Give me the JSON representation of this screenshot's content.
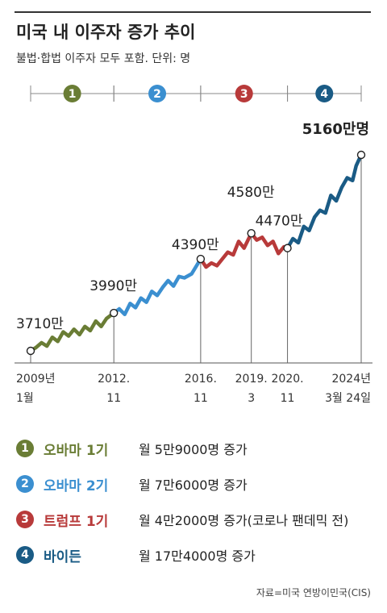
{
  "title": "미국 내 이주자 증가 추이",
  "subtitle": "불법·합법 이주자 모두 포함. 단위: 명",
  "source": "자료=미국 연방이민국(CIS)",
  "colors": {
    "obama1": "#6a7d35",
    "obama2": "#3b8fd0",
    "trump1": "#b83a3a",
    "biden": "#1a5b85"
  },
  "chart_data": {
    "type": "line",
    "x_ticks": [
      {
        "date": "2009-01",
        "label1": "2009년",
        "label2": "1월"
      },
      {
        "date": "2012-11",
        "label1": "2012.",
        "label2": "11"
      },
      {
        "date": "2016-11",
        "label1": "2016.",
        "label2": "11"
      },
      {
        "date": "2019-03",
        "label1": "2019.",
        "label2": "3"
      },
      {
        "date": "2020-11",
        "label1": "2020.",
        "label2": "11"
      },
      {
        "date": "2024-03-24",
        "label1": "2024년",
        "label2": "3월 24일"
      }
    ],
    "ylim": [
      36000000,
      52500000
    ],
    "periods": [
      {
        "num": "1",
        "color_key": "obama1",
        "start": "2009-01",
        "end": "2012-11"
      },
      {
        "num": "2",
        "color_key": "obama2",
        "start": "2012-11",
        "end": "2016-11"
      },
      {
        "num": "3",
        "color_key": "trump1",
        "start": "2016-11",
        "end": "2020-11"
      },
      {
        "num": "4",
        "color_key": "biden",
        "start": "2020-11",
        "end": "2024-03-24"
      }
    ],
    "series": [
      {
        "color_key": "obama1",
        "points": [
          [
            "2009-01",
            37100000
          ],
          [
            "2009-04",
            37350000
          ],
          [
            "2009-07",
            37700000
          ],
          [
            "2009-10",
            37450000
          ],
          [
            "2010-01",
            38100000
          ],
          [
            "2010-04",
            37800000
          ],
          [
            "2010-07",
            38500000
          ],
          [
            "2010-10",
            38200000
          ],
          [
            "2011-01",
            38700000
          ],
          [
            "2011-04",
            38300000
          ],
          [
            "2011-07",
            38900000
          ],
          [
            "2011-10",
            38600000
          ],
          [
            "2012-01",
            39300000
          ],
          [
            "2012-04",
            38900000
          ],
          [
            "2012-07",
            39500000
          ],
          [
            "2012-11",
            39900000
          ]
        ]
      },
      {
        "color_key": "obama2",
        "points": [
          [
            "2012-11",
            39900000
          ],
          [
            "2013-02",
            40200000
          ],
          [
            "2013-05",
            39800000
          ],
          [
            "2013-08",
            40600000
          ],
          [
            "2013-11",
            40300000
          ],
          [
            "2014-02",
            41000000
          ],
          [
            "2014-05",
            40700000
          ],
          [
            "2014-08",
            41500000
          ],
          [
            "2014-11",
            41200000
          ],
          [
            "2015-02",
            41800000
          ],
          [
            "2015-05",
            42300000
          ],
          [
            "2015-08",
            41900000
          ],
          [
            "2015-11",
            42600000
          ],
          [
            "2016-02",
            42500000
          ],
          [
            "2016-06",
            42800000
          ],
          [
            "2016-11",
            43900000
          ]
        ]
      },
      {
        "color_key": "trump1",
        "points": [
          [
            "2016-11",
            43900000
          ],
          [
            "2017-02",
            43300000
          ],
          [
            "2017-05",
            43600000
          ],
          [
            "2017-08",
            43400000
          ],
          [
            "2017-11",
            43900000
          ],
          [
            "2018-02",
            44400000
          ],
          [
            "2018-05",
            44200000
          ],
          [
            "2018-08",
            45200000
          ],
          [
            "2018-11",
            44700000
          ],
          [
            "2019-03",
            45800000
          ],
          [
            "2019-06",
            45300000
          ],
          [
            "2019-09",
            45500000
          ],
          [
            "2019-12",
            44900000
          ],
          [
            "2020-03",
            45200000
          ],
          [
            "2020-06",
            44300000
          ],
          [
            "2020-09",
            44800000
          ],
          [
            "2020-11",
            44700000
          ]
        ]
      },
      {
        "color_key": "biden",
        "points": [
          [
            "2020-11",
            44700000
          ],
          [
            "2021-02",
            45400000
          ],
          [
            "2021-05",
            45100000
          ],
          [
            "2021-08",
            46300000
          ],
          [
            "2021-11",
            46000000
          ],
          [
            "2022-02",
            47000000
          ],
          [
            "2022-05",
            47500000
          ],
          [
            "2022-08",
            47300000
          ],
          [
            "2022-11",
            48600000
          ],
          [
            "2023-02",
            48200000
          ],
          [
            "2023-05",
            49200000
          ],
          [
            "2023-08",
            49900000
          ],
          [
            "2023-11",
            49700000
          ],
          [
            "2024-01",
            50800000
          ],
          [
            "2024-03-24",
            51600000
          ]
        ]
      }
    ],
    "annotations": [
      {
        "date": "2009-01",
        "value": 37100000,
        "label": "3710만",
        "bold": false
      },
      {
        "date": "2012-11",
        "value": 39900000,
        "label": "3990만",
        "bold": false
      },
      {
        "date": "2016-11",
        "value": 43900000,
        "label": "4390만",
        "bold": false
      },
      {
        "date": "2019-03",
        "value": 45800000,
        "label": "4580만",
        "bold": false
      },
      {
        "date": "2020-11",
        "value": 44700000,
        "label": "4470만",
        "bold": false
      },
      {
        "date": "2024-03-24",
        "value": 51600000,
        "label": "5160만명",
        "bold": true
      }
    ]
  },
  "legend": [
    {
      "num": "1",
      "name": "오바마 1기",
      "desc": "월 5만9000명 증가",
      "color_key": "obama1"
    },
    {
      "num": "2",
      "name": "오바마 2기",
      "desc": "월 7만6000명 증가",
      "color_key": "obama2"
    },
    {
      "num": "3",
      "name": "트럼프 1기",
      "desc": "월 4만2000명 증가(코로나 팬데믹 전)",
      "color_key": "trump1"
    },
    {
      "num": "4",
      "name": "바이든",
      "desc": "월 17만4000명 증가",
      "color_key": "biden"
    }
  ]
}
